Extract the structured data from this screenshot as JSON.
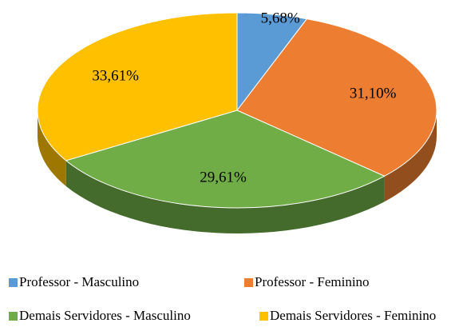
{
  "chart_data": {
    "type": "pie",
    "categories": [
      "Professor - Masculino",
      "Professor - Feminino",
      "Demais Servidores - Masculino",
      "Demais Servidores - Feminino"
    ],
    "values": [
      5.68,
      31.1,
      29.61,
      33.61
    ],
    "value_labels": [
      "5,68%",
      "31,10%",
      "29,61%",
      "33,61%"
    ],
    "colors": [
      "#5b9bd5",
      "#ed7d31",
      "#70ad47",
      "#ffc000"
    ],
    "legend": "bottom"
  }
}
